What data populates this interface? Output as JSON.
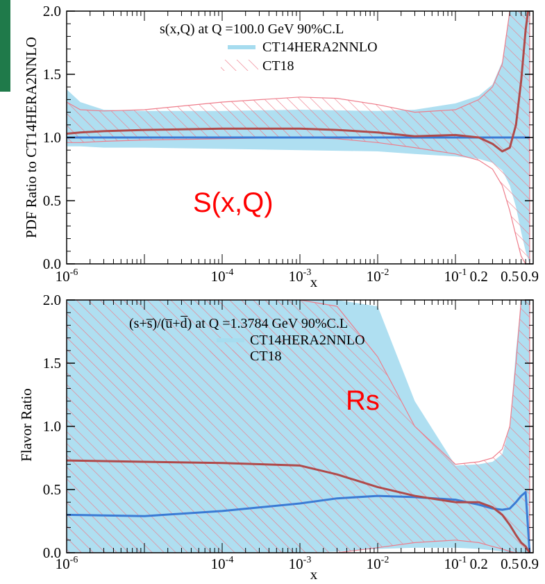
{
  "colors": {
    "ct14_band": "#a6dcef",
    "ct18_hatch": "#ee7c8a",
    "ct14_line": "#3a7bd5",
    "ct18_line": "#b04a4a",
    "annotation": "#ff0000",
    "slide_accent": "#1f7a4a"
  },
  "chart_data": [
    {
      "type": "area",
      "title": "s(x,Q) at Q =100.0 GeV 90%C.L",
      "ylabel": "PDF Ratio to CT14HERA2NNLO",
      "xlabel": "x",
      "xscale": "log",
      "xlim": [
        1e-06,
        1.0
      ],
      "ylim": [
        0.0,
        2.0
      ],
      "annotation": "S(x,Q)",
      "legend_position": "top-right",
      "ytick_labels": [
        "0.0",
        "0.5",
        "1.0",
        "1.5",
        "2.0"
      ],
      "xtick_labels": [
        {
          "base": "10",
          "exp": "-6"
        },
        {
          "base": "10",
          "exp": "-4"
        },
        {
          "base": "10",
          "exp": "-3"
        },
        {
          "base": "10",
          "exp": "-2"
        },
        {
          "base": "10",
          "exp": "-1"
        },
        {
          "base": "0.2",
          "exp": ""
        },
        {
          "base": "0.5",
          "exp": ""
        },
        {
          "base": "0.9",
          "exp": ""
        }
      ],
      "xtick_values": [
        1e-06,
        0.0001,
        0.001,
        0.01,
        0.1,
        0.2,
        0.5,
        0.9
      ],
      "ytick_values": [
        0,
        0.5,
        1.0,
        1.5,
        2.0
      ],
      "series": [
        {
          "name": "CT14HERA2NNLO",
          "style": "band",
          "x": [
            1e-06,
            1.5e-06,
            3e-06,
            1e-05,
            0.0001,
            0.001,
            0.01,
            0.03,
            0.1,
            0.2,
            0.3,
            0.4,
            0.5,
            0.6,
            0.7,
            0.8,
            0.9
          ],
          "upper": [
            1.38,
            1.28,
            1.22,
            1.21,
            1.21,
            1.22,
            1.21,
            1.22,
            1.27,
            1.33,
            1.42,
            1.6,
            2.0,
            2.3,
            2.6,
            2.9,
            3.0
          ],
          "lower": [
            0.93,
            0.93,
            0.92,
            0.92,
            0.91,
            0.9,
            0.89,
            0.87,
            0.85,
            0.83,
            0.8,
            0.74,
            0.62,
            0.45,
            0.25,
            0.1,
            0.0
          ],
          "central": [
            1.0,
            1.0,
            1.0,
            1.0,
            1.0,
            1.0,
            1.0,
            1.0,
            1.0,
            1.0,
            1.0,
            1.0,
            1.0,
            1.0,
            1.0,
            1.0,
            1.0
          ]
        },
        {
          "name": "CT18",
          "style": "hatch",
          "x": [
            1e-06,
            1.5e-06,
            3e-06,
            1e-05,
            0.0001,
            0.001,
            0.003,
            0.01,
            0.03,
            0.1,
            0.2,
            0.3,
            0.4,
            0.5,
            0.6,
            0.7,
            0.8,
            0.9
          ],
          "upper": [
            1.28,
            1.22,
            1.21,
            1.22,
            1.28,
            1.32,
            1.31,
            1.26,
            1.2,
            1.22,
            1.3,
            1.4,
            1.58,
            2.0,
            2.3,
            2.6,
            2.9,
            3.0
          ],
          "lower": [
            0.96,
            0.96,
            0.97,
            0.98,
            0.99,
            1.0,
            0.99,
            0.96,
            0.92,
            0.87,
            0.82,
            0.75,
            0.62,
            0.42,
            0.22,
            0.06,
            0.0,
            0.0
          ],
          "central": [
            1.03,
            1.04,
            1.05,
            1.06,
            1.07,
            1.07,
            1.06,
            1.04,
            1.01,
            1.02,
            1.0,
            0.95,
            0.89,
            0.92,
            1.1,
            1.45,
            1.85,
            2.1
          ]
        }
      ]
    },
    {
      "type": "area",
      "title": "(s+s̅)/(u̅+d̅) at Q =1.3784 GeV 90%C.L",
      "ylabel": "Flavor Ratio",
      "xlabel": "x",
      "xscale": "log",
      "xlim": [
        1e-06,
        1.0
      ],
      "ylim": [
        0.0,
        2.0
      ],
      "annotation": "Rs",
      "legend_position": "top-right",
      "ytick_labels": [
        "0.0",
        "0.5",
        "1.0",
        "1.5",
        "2.0"
      ],
      "xtick_labels": [
        {
          "base": "10",
          "exp": "-6"
        },
        {
          "base": "10",
          "exp": "-4"
        },
        {
          "base": "10",
          "exp": "-3"
        },
        {
          "base": "10",
          "exp": "-2"
        },
        {
          "base": "10",
          "exp": "-1"
        },
        {
          "base": "0.2",
          "exp": ""
        },
        {
          "base": "0.5",
          "exp": ""
        },
        {
          "base": "0.9",
          "exp": ""
        }
      ],
      "xtick_values": [
        1e-06,
        0.0001,
        0.001,
        0.01,
        0.1,
        0.2,
        0.5,
        0.9
      ],
      "ytick_values": [
        0,
        0.5,
        1.0,
        1.5,
        2.0
      ],
      "series": [
        {
          "name": "CT14HERA2NNLO",
          "style": "band",
          "x": [
            1e-06,
            1e-05,
            0.0001,
            0.001,
            0.003,
            0.01,
            0.03,
            0.1,
            0.2,
            0.3,
            0.4,
            0.5,
            0.6,
            0.7,
            0.8,
            0.9
          ],
          "upper": [
            2.0,
            2.0,
            2.0,
            2.0,
            2.0,
            1.95,
            1.2,
            0.69,
            0.7,
            0.72,
            0.78,
            1.0,
            1.6,
            2.0,
            2.0,
            2.0
          ],
          "lower": [
            0.0,
            0.0,
            0.0,
            0.0,
            0.01,
            0.03,
            0.04,
            0.04,
            0.03,
            0.02,
            0.01,
            0.0,
            0.0,
            0.0,
            0.0,
            0.0
          ],
          "central": [
            0.3,
            0.29,
            0.33,
            0.39,
            0.43,
            0.45,
            0.44,
            0.42,
            0.38,
            0.35,
            0.34,
            0.35,
            0.4,
            0.45,
            0.48,
            0.0
          ]
        },
        {
          "name": "CT18",
          "style": "hatch",
          "x": [
            1e-06,
            1e-05,
            0.0001,
            0.001,
            0.003,
            0.01,
            0.03,
            0.1,
            0.2,
            0.3,
            0.4,
            0.5,
            0.6,
            0.7,
            0.8,
            0.9
          ],
          "upper": [
            2.0,
            2.0,
            2.0,
            2.0,
            1.95,
            1.55,
            1.0,
            0.7,
            0.72,
            0.75,
            0.82,
            1.0,
            1.5,
            2.0,
            2.0,
            2.0
          ],
          "lower": [
            0.0,
            0.0,
            0.0,
            0.0,
            0.0,
            0.04,
            0.08,
            0.1,
            0.08,
            0.05,
            0.03,
            0.01,
            0.0,
            0.0,
            0.0,
            0.0
          ],
          "central": [
            0.73,
            0.72,
            0.71,
            0.69,
            0.62,
            0.52,
            0.45,
            0.4,
            0.4,
            0.36,
            0.3,
            0.22,
            0.14,
            0.08,
            0.05,
            0.0
          ]
        }
      ]
    }
  ]
}
